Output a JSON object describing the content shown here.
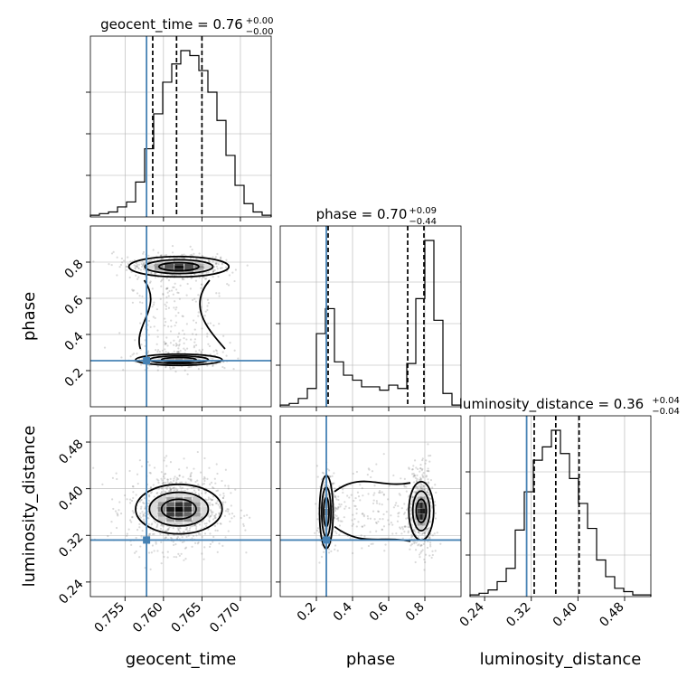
{
  "colors": {
    "truth": "#4682b4",
    "hist": "#000000",
    "grid": "#b0b0b0"
  },
  "params": [
    {
      "key": "geocent_time",
      "label": "geocent_time",
      "range": [
        0.7505,
        0.774
      ],
      "ticks": [
        0.755,
        0.76,
        0.765,
        0.77
      ],
      "tick_labels": [
        "0.755",
        "0.760",
        "0.765",
        "0.770"
      ],
      "truth": 0.7578,
      "quantiles": [
        0.7586,
        0.7617,
        0.765
      ],
      "title_main": "geocent_time = 0.76",
      "title_sup": "+0.00",
      "title_sub": "−0.00"
    },
    {
      "key": "phase",
      "label": "phase",
      "range": [
        0.0,
        1.0
      ],
      "ticks": [
        0.2,
        0.4,
        0.6,
        0.8
      ],
      "tick_labels": [
        "0.2",
        "0.4",
        "0.6",
        "0.8"
      ],
      "truth": 0.255,
      "quantiles": [
        0.265,
        0.705,
        0.795
      ],
      "title_main": "phase = 0.70",
      "title_sup": "+0.09",
      "title_sub": "−0.44"
    },
    {
      "key": "luminosity_distance",
      "label": "luminosity_distance",
      "range": [
        0.215,
        0.525
      ],
      "ticks": [
        0.24,
        0.32,
        0.4,
        0.48
      ],
      "tick_labels": [
        "0.24",
        "0.32",
        "0.40",
        "0.48"
      ],
      "truth": 0.312,
      "quantiles": [
        0.325,
        0.362,
        0.402
      ],
      "title_main": "luminosity_distance = 0.36",
      "title_sup": "+0.04",
      "title_sub": "−0.04"
    }
  ],
  "chart_data": {
    "type": "corner",
    "hist_bins": 20,
    "histograms": {
      "geocent_time": [
        0.01,
        0.02,
        0.03,
        0.06,
        0.09,
        0.21,
        0.41,
        0.62,
        0.81,
        0.92,
        1.0,
        0.97,
        0.88,
        0.75,
        0.58,
        0.37,
        0.19,
        0.08,
        0.03,
        0.01
      ],
      "phase": [
        0.01,
        0.02,
        0.05,
        0.11,
        0.44,
        0.59,
        0.27,
        0.19,
        0.16,
        0.12,
        0.12,
        0.1,
        0.13,
        0.11,
        0.26,
        0.65,
        1.0,
        0.52,
        0.08,
        0.01
      ],
      "luminosity_distance": [
        0.01,
        0.02,
        0.04,
        0.09,
        0.17,
        0.4,
        0.63,
        0.82,
        0.9,
        1.0,
        0.86,
        0.71,
        0.56,
        0.41,
        0.22,
        0.12,
        0.05,
        0.03,
        0.01,
        0.01
      ]
    },
    "truths": {
      "geocent_time": 0.7578,
      "phase": 0.255,
      "luminosity_distance": 0.312
    },
    "quantiles": [
      0.16,
      0.5,
      0.84
    ]
  }
}
